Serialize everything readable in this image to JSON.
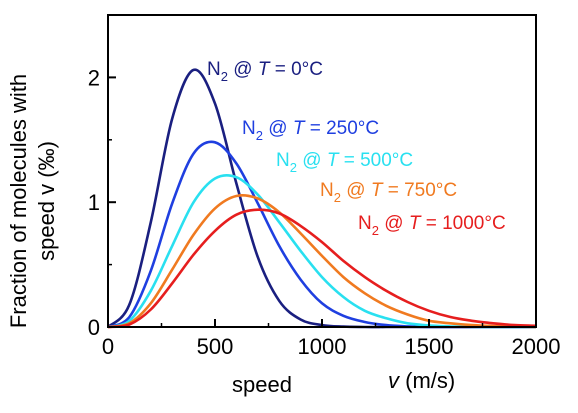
{
  "chart_data": {
    "type": "line",
    "title": "",
    "ylabel_line1": "Fraction of molecules with",
    "ylabel_line2": "speed v (‰)",
    "xlabel_left": "speed",
    "xlabel_right": "v (m/s)",
    "xlim": [
      0,
      2000
    ],
    "ylim": [
      0,
      2.5
    ],
    "xticks": [
      "0",
      "500",
      "1000",
      "1500",
      "2000"
    ],
    "yticks": [
      "0",
      "1",
      "2"
    ],
    "grid": false,
    "legend": "inline labels next to each curve",
    "series": [
      {
        "name": "N2 @ T = 0°C",
        "label_parts": {
          "molecule": "N",
          "sub": "2",
          "at": "@",
          "var": "T",
          "rest": " = 0°C"
        },
        "color": "#1a1f80",
        "x": [
          0,
          100,
          200,
          300,
          400,
          500,
          600,
          700,
          800,
          900,
          1000,
          1100,
          1200,
          1300,
          1400,
          1500,
          1600,
          1700,
          1800,
          1900,
          2000
        ],
        "values": [
          0,
          0.18,
          0.84,
          1.67,
          2.06,
          1.79,
          1.15,
          0.56,
          0.21,
          0.06,
          0.015,
          0.003,
          0,
          0,
          0,
          0,
          0,
          0,
          0,
          0,
          0
        ]
      },
      {
        "name": "N2 @ T = 250°C",
        "label_parts": {
          "molecule": "N",
          "sub": "2",
          "at": "@",
          "var": "T",
          "rest": " = 250°C"
        },
        "color": "#1f3fe0",
        "x": [
          0,
          100,
          200,
          300,
          400,
          500,
          600,
          700,
          800,
          900,
          1000,
          1100,
          1200,
          1300,
          1400,
          1500,
          1600,
          1700,
          1800,
          1900,
          2000
        ],
        "values": [
          0,
          0.08,
          0.45,
          0.99,
          1.39,
          1.48,
          1.31,
          0.99,
          0.65,
          0.38,
          0.19,
          0.09,
          0.04,
          0.015,
          0.005,
          0.001,
          0,
          0,
          0,
          0,
          0
        ]
      },
      {
        "name": "N2 @ T = 500°C",
        "label_parts": {
          "molecule": "N",
          "sub": "2",
          "at": "@",
          "var": "T",
          "rest": " = 500°C"
        },
        "color": "#29e0f0",
        "x": [
          0,
          100,
          200,
          300,
          400,
          500,
          600,
          700,
          800,
          900,
          1000,
          1100,
          1200,
          1300,
          1400,
          1500,
          1600,
          1700,
          1800,
          1900,
          2000
        ],
        "values": [
          0,
          0.05,
          0.29,
          0.65,
          1.0,
          1.19,
          1.2,
          1.06,
          0.84,
          0.61,
          0.4,
          0.24,
          0.13,
          0.07,
          0.03,
          0.013,
          0.005,
          0.002,
          0,
          0,
          0
        ]
      },
      {
        "name": "N2 @ T = 750°C",
        "label_parts": {
          "molecule": "N",
          "sub": "2",
          "at": "@",
          "var": "T",
          "rest": " = 750°C"
        },
        "color": "#f07a20",
        "x": [
          0,
          100,
          200,
          300,
          400,
          500,
          600,
          700,
          800,
          900,
          1000,
          1100,
          1200,
          1300,
          1400,
          1500,
          1600,
          1700,
          1800,
          1900,
          2000
        ],
        "values": [
          0,
          0.03,
          0.19,
          0.46,
          0.74,
          0.95,
          1.05,
          1.03,
          0.92,
          0.75,
          0.57,
          0.4,
          0.27,
          0.17,
          0.1,
          0.05,
          0.03,
          0.015,
          0.007,
          0.003,
          0.001
        ]
      },
      {
        "name": "N2 @ T = 1000°C",
        "label_parts": {
          "molecule": "N",
          "sub": "2",
          "at": "@",
          "var": "T",
          "rest": " = 1000°C"
        },
        "color": "#e61e1e",
        "x": [
          0,
          100,
          200,
          300,
          400,
          500,
          600,
          700,
          800,
          900,
          1000,
          1100,
          1200,
          1300,
          1400,
          1500,
          1600,
          1700,
          1800,
          1900,
          2000
        ],
        "values": [
          0,
          0.02,
          0.14,
          0.35,
          0.58,
          0.77,
          0.9,
          0.94,
          0.91,
          0.81,
          0.68,
          0.53,
          0.4,
          0.29,
          0.2,
          0.13,
          0.08,
          0.05,
          0.03,
          0.015,
          0.01
        ]
      }
    ]
  }
}
